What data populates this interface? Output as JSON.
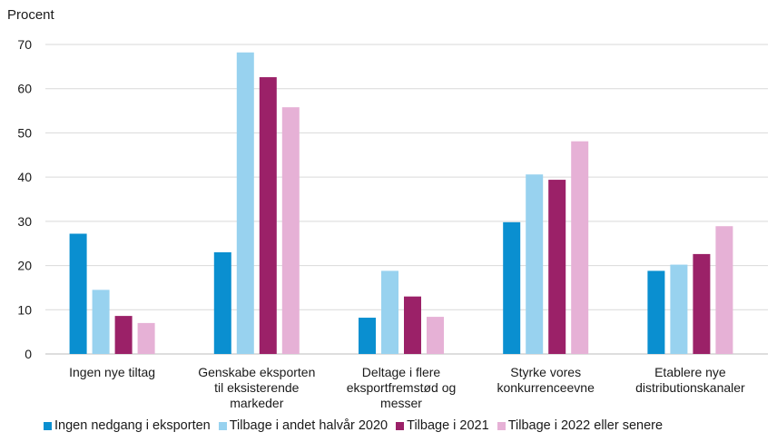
{
  "chart_data": {
    "type": "bar",
    "title": "",
    "ylabel": "Procent",
    "xlabel": "",
    "ylim": [
      0,
      70
    ],
    "yticks": [
      0,
      10,
      20,
      30,
      40,
      50,
      60,
      70
    ],
    "grid": true,
    "legend_position": "bottom",
    "categories": [
      [
        "Ingen nye tiltag"
      ],
      [
        "Genskabe eksporten",
        "til eksisterende",
        "markeder"
      ],
      [
        "Deltage i flere",
        "eksportfremstød og",
        "messer"
      ],
      [
        "Styrke vores",
        "konkurrenceevne"
      ],
      [
        "Etablere nye",
        "distributionskanaler"
      ]
    ],
    "series": [
      {
        "name": "Ingen nedgang i eksporten",
        "color": "#0a8fd0",
        "values": [
          27.2,
          23.0,
          8.2,
          29.8,
          18.8
        ]
      },
      {
        "name": "Tilbage i andet halvår 2020",
        "color": "#98d2ef",
        "values": [
          14.5,
          68.2,
          18.8,
          40.6,
          20.2
        ]
      },
      {
        "name": "Tilbage i 2021",
        "color": "#9b2168",
        "values": [
          8.6,
          62.6,
          13.0,
          39.4,
          22.6
        ]
      },
      {
        "name": "Tilbage i 2022 eller senere",
        "color": "#e6b1d6",
        "values": [
          7.0,
          55.8,
          8.4,
          48.1,
          28.9
        ]
      }
    ]
  }
}
